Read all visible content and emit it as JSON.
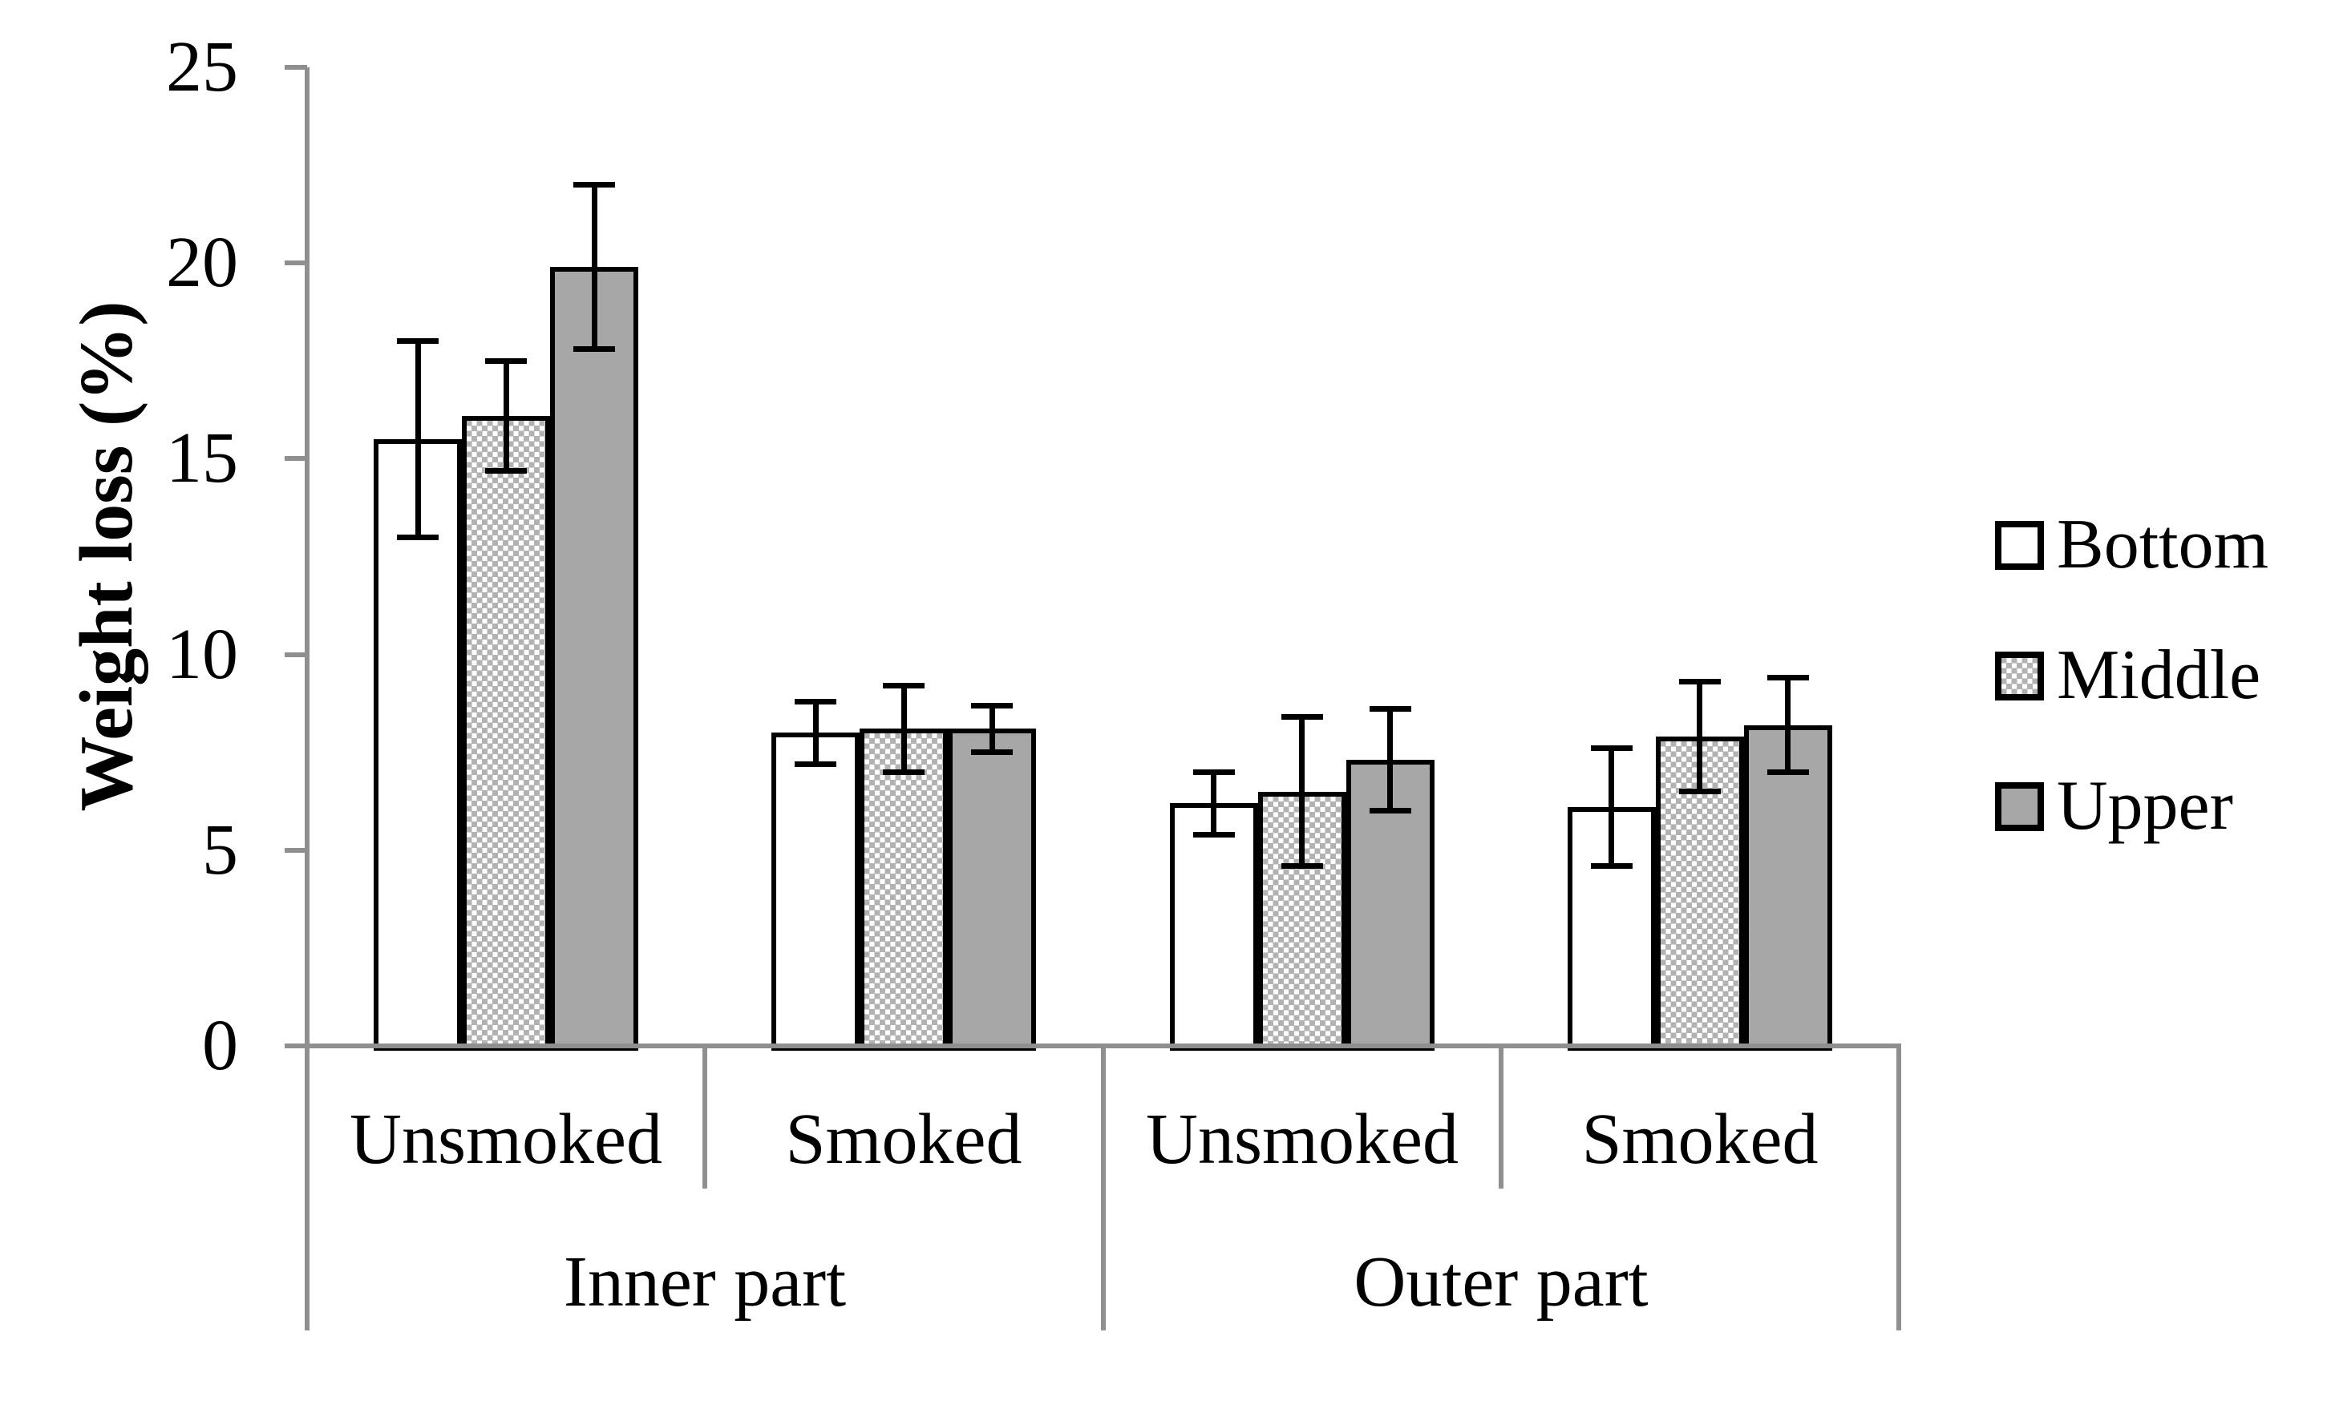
{
  "chart_data": {
    "type": "bar",
    "title": "",
    "ylabel": "Weight loss (%)",
    "xlabel": "",
    "ylim": [
      0,
      25
    ],
    "yticks": [
      0,
      5,
      10,
      15,
      20,
      25
    ],
    "grid": false,
    "legend_position": "right",
    "group_labels": [
      "Inner part",
      "Outer part"
    ],
    "categories": [
      "Unsmoked",
      "Smoked",
      "Unsmoked",
      "Smoked"
    ],
    "category_group_index": [
      0,
      0,
      1,
      1
    ],
    "error_bars": true,
    "series": [
      {
        "name": "Bottom",
        "fill": "white",
        "values": [
          15.5,
          8.0,
          6.2,
          6.1
        ],
        "errors": [
          2.5,
          0.8,
          0.8,
          1.5
        ]
      },
      {
        "name": "Middle",
        "fill": "dotted",
        "values": [
          16.1,
          8.1,
          6.5,
          7.9
        ],
        "errors": [
          1.4,
          1.1,
          1.9,
          1.4
        ]
      },
      {
        "name": "Upper",
        "fill": "gray",
        "values": [
          19.9,
          8.1,
          7.3,
          8.2
        ],
        "errors": [
          2.1,
          0.6,
          1.3,
          1.2
        ]
      }
    ],
    "colors": {
      "bar_gray_fill": "#a7a7a7",
      "dot_pattern_gray": "#b2b2b2",
      "axis_gray": "#8f8f8f",
      "bar_border": "#000000",
      "background": "#ffffff"
    }
  }
}
